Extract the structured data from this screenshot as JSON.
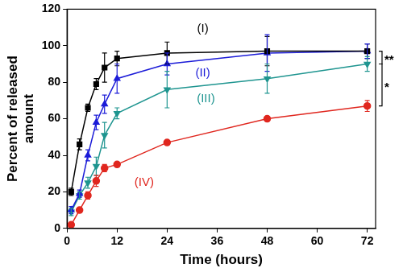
{
  "chart_data": {
    "type": "line",
    "x_label": "Time (hours)",
    "y_label": [
      "Percent of released",
      "amount"
    ],
    "x": [
      1,
      3,
      5,
      7,
      9,
      12,
      24,
      48,
      72
    ],
    "xlim": [
      0,
      74
    ],
    "xticks": [
      0,
      12,
      24,
      36,
      48,
      60,
      72
    ],
    "ylim": [
      0,
      120
    ],
    "yticks": [
      0,
      20,
      40,
      60,
      80,
      100,
      120
    ],
    "grid": false,
    "series": [
      {
        "name": "(I)",
        "color": "#000000",
        "marker": "square",
        "values": [
          20,
          46,
          66,
          79,
          88,
          93,
          96,
          97,
          97
        ],
        "errors": [
          2,
          3,
          2,
          3,
          8,
          4,
          6,
          8,
          4
        ]
      },
      {
        "name": "(II)",
        "color": "#1c1cd8",
        "marker": "triangle",
        "values": [
          10,
          19,
          40,
          58,
          68,
          82,
          90,
          96,
          97
        ],
        "errors": [
          2,
          2,
          3,
          4,
          5,
          8,
          6,
          10,
          4
        ]
      },
      {
        "name": "(III)",
        "color": "#1f9590",
        "marker": "triangle-down",
        "values": [
          9,
          18,
          25,
          34,
          51,
          63,
          76,
          82,
          90
        ],
        "errors": [
          2,
          2,
          3,
          5,
          7,
          3,
          10,
          8,
          4
        ]
      },
      {
        "name": "(IV)",
        "color": "#e0271f",
        "marker": "circle",
        "values": [
          2,
          10,
          18,
          26,
          33,
          35,
          47,
          60,
          67
        ],
        "errors": [
          1,
          1,
          2,
          3,
          2,
          1,
          1,
          1,
          3
        ]
      }
    ],
    "significance": [
      {
        "label": "**",
        "from": 97,
        "to": 90
      },
      {
        "label": "*",
        "from": 90,
        "to": 67
      }
    ]
  }
}
